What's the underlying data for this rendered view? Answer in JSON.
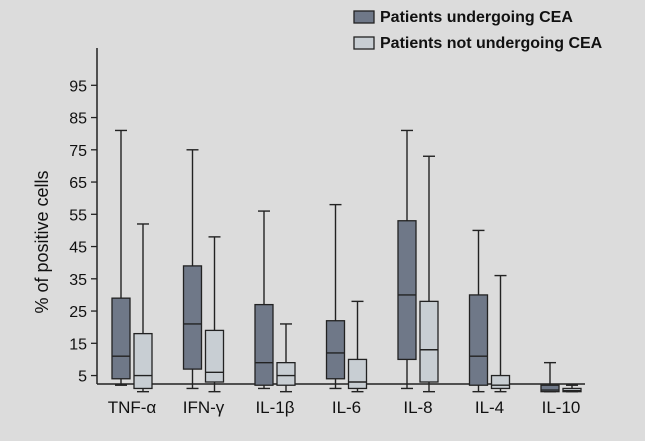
{
  "chart_data": {
    "type": "boxplot",
    "ylabel": "% of positive cells",
    "ylim": [
      0,
      100
    ],
    "yticks": [
      5,
      15,
      25,
      35,
      45,
      55,
      65,
      75,
      85,
      95
    ],
    "categories": [
      "TNF-α",
      "IFN-γ",
      "IL-1β",
      "IL-6",
      "IL-8",
      "IL-4",
      "IL-10"
    ],
    "legend_position": "top-right",
    "series": [
      {
        "name": "Patients undergoing CEA",
        "color": "#6f7888",
        "boxes": [
          {
            "min": 2,
            "q1": 4,
            "median": 11,
            "q3": 29,
            "max": 81
          },
          {
            "min": 1,
            "q1": 7,
            "median": 21,
            "q3": 39,
            "max": 75
          },
          {
            "min": 1,
            "q1": 2,
            "median": 9,
            "q3": 27,
            "max": 56
          },
          {
            "min": 1,
            "q1": 4,
            "median": 12,
            "q3": 22,
            "max": 58
          },
          {
            "min": 1,
            "q1": 10,
            "median": 30,
            "q3": 53,
            "max": 81
          },
          {
            "min": 0,
            "q1": 2,
            "median": 11,
            "q3": 30,
            "max": 50
          },
          {
            "min": 0,
            "q1": 0,
            "median": 0.5,
            "q3": 2,
            "max": 9
          }
        ]
      },
      {
        "name": "Patients not undergoing CEA",
        "color": "#c8ced3",
        "boxes": [
          {
            "min": 0,
            "q1": 1,
            "median": 5,
            "q3": 18,
            "max": 52
          },
          {
            "min": 0,
            "q1": 3,
            "median": 6,
            "q3": 19,
            "max": 48
          },
          {
            "min": 0,
            "q1": 2,
            "median": 5,
            "q3": 9,
            "max": 21
          },
          {
            "min": 0,
            "q1": 1,
            "median": 3,
            "q3": 10,
            "max": 28
          },
          {
            "min": 0,
            "q1": 3,
            "median": 13,
            "q3": 28,
            "max": 73
          },
          {
            "min": 0,
            "q1": 1,
            "median": 2,
            "q3": 5,
            "max": 36
          },
          {
            "min": 0,
            "q1": 0,
            "median": 0.3,
            "q3": 1,
            "max": 2
          }
        ]
      }
    ]
  }
}
